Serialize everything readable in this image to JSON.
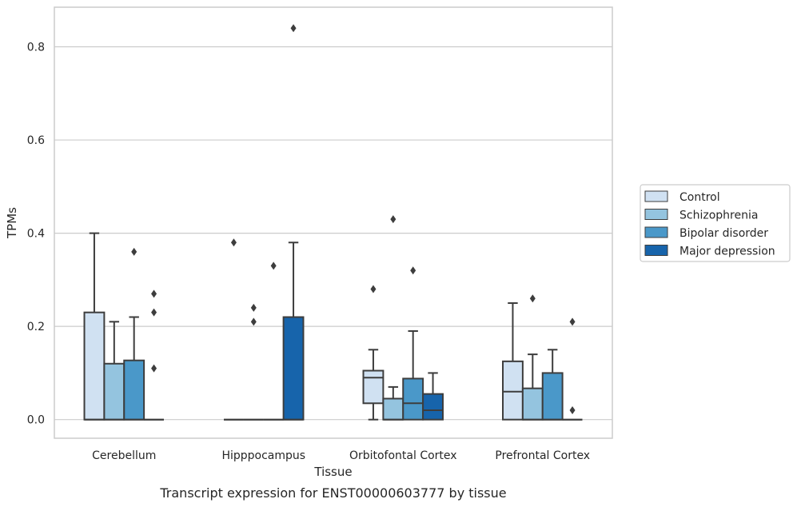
{
  "chart_data": {
    "type": "box",
    "xlabel": "Tissue",
    "ylabel": "TPMs",
    "caption": "Transcript expression for ENST00000603777 by tissue",
    "categories": [
      "Cerebellum",
      "Hipppocampus",
      "Orbitofontal Cortex",
      "Prefrontal Cortex"
    ],
    "ylim": [
      -0.04,
      0.885
    ],
    "yticks": [
      0.0,
      0.2,
      0.4,
      0.6,
      0.8
    ],
    "ytick_labels": [
      "0.0",
      "0.2",
      "0.4",
      "0.6",
      "0.8"
    ],
    "grid": "horizontal",
    "legend_position": "right",
    "series": [
      {
        "name": "Control",
        "color": "#d0e1f2",
        "boxes": [
          {
            "q1": 0.0,
            "median": 0.0,
            "q3": 0.23,
            "whisker_low": 0.0,
            "whisker_high": 0.4,
            "outliers": []
          },
          {
            "q1": 0.0,
            "median": 0.0,
            "q3": 0.0,
            "whisker_low": 0.0,
            "whisker_high": 0.0,
            "outliers": [
              0.38
            ]
          },
          {
            "q1": 0.035,
            "median": 0.09,
            "q3": 0.105,
            "whisker_low": 0.0,
            "whisker_high": 0.15,
            "outliers": [
              0.28
            ]
          },
          {
            "q1": 0.0,
            "median": 0.06,
            "q3": 0.125,
            "whisker_low": 0.0,
            "whisker_high": 0.25,
            "outliers": []
          }
        ]
      },
      {
        "name": "Schizophrenia",
        "color": "#94c4df",
        "boxes": [
          {
            "q1": 0.0,
            "median": 0.0,
            "q3": 0.12,
            "whisker_low": 0.0,
            "whisker_high": 0.21,
            "outliers": []
          },
          {
            "q1": 0.0,
            "median": 0.0,
            "q3": 0.0,
            "whisker_low": 0.0,
            "whisker_high": 0.0,
            "outliers": [
              0.24,
              0.21
            ]
          },
          {
            "q1": 0.0,
            "median": 0.0,
            "q3": 0.045,
            "whisker_low": 0.0,
            "whisker_high": 0.07,
            "outliers": [
              0.43
            ]
          },
          {
            "q1": 0.0,
            "median": 0.0,
            "q3": 0.067,
            "whisker_low": 0.0,
            "whisker_high": 0.14,
            "outliers": [
              0.26
            ]
          }
        ]
      },
      {
        "name": "Bipolar disorder",
        "color": "#4a98c9",
        "boxes": [
          {
            "q1": 0.0,
            "median": 0.0,
            "q3": 0.127,
            "whisker_low": 0.0,
            "whisker_high": 0.22,
            "outliers": [
              0.36
            ]
          },
          {
            "q1": 0.0,
            "median": 0.0,
            "q3": 0.0,
            "whisker_low": 0.0,
            "whisker_high": 0.0,
            "outliers": [
              0.33
            ]
          },
          {
            "q1": 0.0,
            "median": 0.035,
            "q3": 0.088,
            "whisker_low": 0.0,
            "whisker_high": 0.19,
            "outliers": [
              0.32
            ]
          },
          {
            "q1": 0.0,
            "median": 0.0,
            "q3": 0.1,
            "whisker_low": 0.0,
            "whisker_high": 0.15,
            "outliers": []
          }
        ]
      },
      {
        "name": "Major depression",
        "color": "#1764ab",
        "boxes": [
          {
            "q1": 0.0,
            "median": 0.0,
            "q3": 0.0,
            "whisker_low": 0.0,
            "whisker_high": 0.0,
            "outliers": [
              0.27,
              0.23,
              0.11
            ]
          },
          {
            "q1": 0.0,
            "median": 0.0,
            "q3": 0.22,
            "whisker_low": 0.0,
            "whisker_high": 0.38,
            "outliers": [
              0.84
            ]
          },
          {
            "q1": 0.0,
            "median": 0.02,
            "q3": 0.055,
            "whisker_low": 0.0,
            "whisker_high": 0.1,
            "outliers": []
          },
          {
            "q1": 0.0,
            "median": 0.0,
            "q3": 0.0,
            "whisker_low": 0.0,
            "whisker_high": 0.0,
            "outliers": [
              0.21,
              0.02
            ]
          }
        ]
      }
    ]
  }
}
